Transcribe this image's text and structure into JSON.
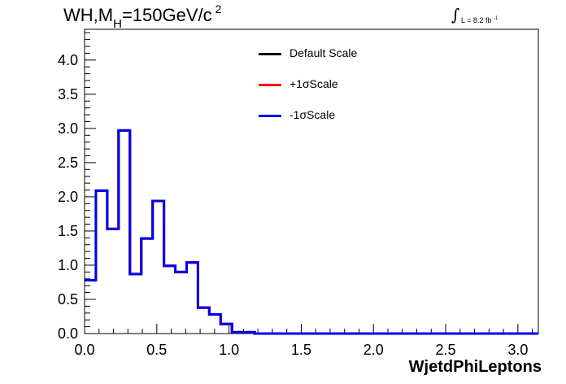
{
  "title": {
    "main": "WH,M",
    "subscript": "H",
    "rest": "=150GeV/c",
    "superscript": "2"
  },
  "lumi": {
    "symbol": "∫",
    "text": "L = 8.2 fb",
    "superscript": "-1"
  },
  "chart_data": {
    "type": "histogram",
    "xlabel": "WjetdPhiLeptons",
    "ylabel": "",
    "xlim": [
      0,
      3.1416
    ],
    "ylim": [
      0,
      4.45
    ],
    "x_ticks": [
      "0.0",
      "0.5",
      "1.0",
      "1.5",
      "2.0",
      "2.5",
      "3.0"
    ],
    "y_ticks": [
      "0.0",
      "0.5",
      "1.0",
      "1.5",
      "2.0",
      "2.5",
      "3.0",
      "3.5",
      "4.0"
    ],
    "bin_width": 0.0785,
    "bin_start": 0.0,
    "legend_position": "top-center",
    "series": [
      {
        "name": "Default Scale",
        "color": "#000000",
        "values": [
          0.78,
          2.09,
          1.53,
          2.97,
          0.87,
          1.39,
          1.94,
          0.99,
          0.9,
          1.04,
          0.38,
          0.28,
          0.14,
          0.02,
          0.02,
          0.0,
          0,
          0,
          0,
          0,
          0,
          0,
          0,
          0,
          0,
          0,
          0,
          0,
          0,
          0,
          0,
          0,
          0,
          0,
          0,
          0,
          0,
          0,
          0,
          0
        ]
      },
      {
        "name": "+1σScale",
        "color": "#ff0000",
        "values": [
          0.78,
          2.09,
          1.53,
          2.97,
          0.87,
          1.39,
          1.94,
          0.99,
          0.9,
          1.04,
          0.38,
          0.28,
          0.14,
          0.02,
          0.02,
          0.0,
          0,
          0,
          0,
          0,
          0,
          0,
          0,
          0,
          0,
          0,
          0,
          0,
          0,
          0,
          0,
          0,
          0,
          0,
          0,
          0,
          0,
          0,
          0,
          0
        ]
      },
      {
        "name": "-1σScale",
        "color": "#0000ee",
        "values": [
          0.78,
          2.09,
          1.53,
          2.97,
          0.87,
          1.39,
          1.94,
          0.99,
          0.9,
          1.04,
          0.38,
          0.28,
          0.14,
          0.02,
          0.02,
          0.0,
          0,
          0,
          0,
          0,
          0,
          0,
          0,
          0,
          0,
          0,
          0,
          0,
          0,
          0,
          0,
          0,
          0,
          0,
          0,
          0,
          0,
          0,
          0,
          0
        ]
      }
    ]
  }
}
